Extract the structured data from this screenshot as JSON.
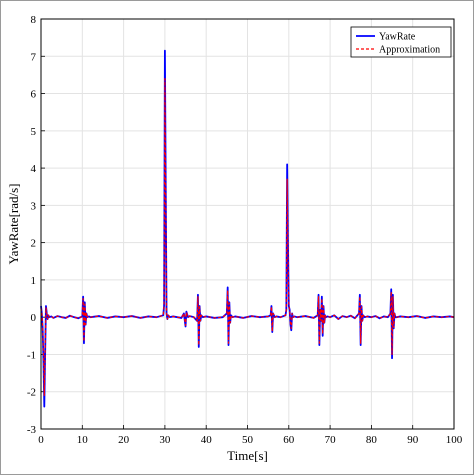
{
  "chart_data": {
    "type": "line",
    "title": "",
    "xlabel": "Time[s]",
    "ylabel": "YawRate[rad/s]",
    "xlim": [
      0,
      100
    ],
    "ylim": [
      -3,
      8
    ],
    "xticks": [
      0,
      10,
      20,
      30,
      40,
      50,
      60,
      70,
      80,
      90,
      100
    ],
    "yticks": [
      -3,
      -2,
      -1,
      0,
      1,
      2,
      3,
      4,
      5,
      6,
      7,
      8
    ],
    "grid": true,
    "legend": "top-right",
    "series": [
      {
        "name": "YawRate",
        "color": "#0000ff",
        "style": "solid",
        "x": [
          0,
          0.2,
          0.4,
          0.6,
          0.8,
          1.0,
          1.2,
          1.4,
          1.6,
          1.8,
          2.0,
          2.5,
          3,
          4,
          5,
          6,
          7,
          8,
          9,
          10,
          10.2,
          10.4,
          10.6,
          10.8,
          11.0,
          11.2,
          11.6,
          12,
          14,
          16,
          18,
          20,
          22,
          24,
          26,
          28,
          29.6,
          29.8,
          30.0,
          30.2,
          30.4,
          30.6,
          30.8,
          31.2,
          32,
          34,
          34.6,
          35.0,
          35.2,
          35.6,
          36,
          37,
          37.8,
          38.0,
          38.2,
          38.4,
          38.6,
          38.8,
          39.2,
          40,
          42,
          44,
          45.0,
          45.2,
          45.4,
          45.6,
          45.8,
          46.0,
          46.4,
          47,
          49,
          51,
          53,
          55,
          55.6,
          55.8,
          56.0,
          56.2,
          56.6,
          57,
          58,
          59.2,
          59.4,
          59.6,
          59.8,
          60.0,
          60.2,
          60.4,
          60.6,
          60.8,
          61.0,
          61.4,
          62,
          64,
          66,
          67.0,
          67.2,
          67.4,
          67.6,
          67.8,
          68.0,
          68.2,
          68.4,
          68.6,
          68.8,
          69.0,
          69.4,
          70,
          71,
          72,
          73,
          74,
          75,
          76,
          77.0,
          77.2,
          77.4,
          77.6,
          77.8,
          78.0,
          78.4,
          79,
          80,
          81,
          82,
          83,
          84,
          84.6,
          84.8,
          85.0,
          85.2,
          85.4,
          85.6,
          85.8,
          86.2,
          87,
          89,
          91,
          93,
          95,
          97,
          99,
          100
        ],
        "y": [
          0.3,
          0.1,
          -0.3,
          -1.2,
          -2.4,
          -1.0,
          0.3,
          0.1,
          -0.05,
          0.05,
          0.0,
          0.02,
          -0.02,
          0.03,
          0.0,
          -0.02,
          0.04,
          0.0,
          -0.03,
          0.02,
          0.55,
          -0.7,
          0.4,
          -0.2,
          0.1,
          0.0,
          0.02,
          0.0,
          0.03,
          -0.02,
          0.02,
          0.0,
          0.03,
          -0.02,
          0.02,
          0.0,
          0.05,
          0.3,
          7.15,
          3.5,
          0.1,
          -0.05,
          0.05,
          0.0,
          0.02,
          -0.02,
          0.1,
          -0.25,
          0.15,
          0.0,
          0.03,
          0.0,
          -0.1,
          0.6,
          -0.8,
          0.3,
          -0.1,
          0.05,
          0.0,
          0.02,
          -0.02,
          0.0,
          0.1,
          0.8,
          -0.75,
          0.4,
          -0.15,
          0.05,
          0.0,
          0.02,
          -0.02,
          0.03,
          0.0,
          0.02,
          0.05,
          0.3,
          -0.4,
          0.1,
          0.0,
          0.02,
          0.0,
          0.05,
          0.2,
          4.1,
          2.0,
          0.3,
          0.2,
          -0.2,
          -0.35,
          0.1,
          0.0,
          0.02,
          0.0,
          0.03,
          -0.02,
          0.05,
          0.6,
          -0.75,
          0.2,
          -0.1,
          0.55,
          -0.5,
          0.3,
          -0.15,
          0.05,
          0.0,
          0.02,
          0.0,
          0.05,
          -0.05,
          0.03,
          0.0,
          0.04,
          -0.03,
          0.1,
          0.6,
          -0.75,
          0.3,
          -0.1,
          0.05,
          0.0,
          0.02,
          0.0,
          0.03,
          -0.03,
          0.02,
          0.0,
          0.1,
          0.75,
          -1.1,
          0.6,
          -0.3,
          0.1,
          0.0,
          0.0,
          0.02,
          0.0,
          0.03,
          -0.02,
          0.02,
          0.0,
          0.02,
          0.0
        ]
      },
      {
        "name": "Approximation",
        "color": "#ff0000",
        "style": "dashed",
        "x": [
          0,
          0.2,
          0.4,
          0.6,
          0.8,
          1.0,
          1.2,
          1.4,
          1.6,
          1.8,
          2.0,
          2.5,
          3,
          4,
          5,
          6,
          7,
          8,
          9,
          10,
          10.2,
          10.4,
          10.6,
          10.8,
          11.0,
          11.2,
          11.6,
          12,
          14,
          16,
          18,
          20,
          22,
          24,
          26,
          28,
          29.6,
          29.8,
          30.0,
          30.2,
          30.4,
          30.6,
          30.8,
          31.2,
          32,
          34,
          34.6,
          35.0,
          35.2,
          35.6,
          36,
          37,
          37.8,
          38.0,
          38.2,
          38.4,
          38.6,
          38.8,
          39.2,
          40,
          42,
          44,
          45.0,
          45.2,
          45.4,
          45.6,
          45.8,
          46.0,
          46.4,
          47,
          49,
          51,
          53,
          55,
          55.6,
          55.8,
          56.0,
          56.2,
          56.6,
          57,
          58,
          59.2,
          59.4,
          59.6,
          59.8,
          60.0,
          60.2,
          60.4,
          60.6,
          60.8,
          61.0,
          61.4,
          62,
          64,
          66,
          67.0,
          67.2,
          67.4,
          67.6,
          67.8,
          68.0,
          68.2,
          68.4,
          68.6,
          68.8,
          69.0,
          69.4,
          70,
          71,
          72,
          73,
          74,
          75,
          76,
          77.0,
          77.2,
          77.4,
          77.6,
          77.8,
          78.0,
          78.4,
          79,
          80,
          81,
          82,
          83,
          84,
          84.6,
          84.8,
          85.0,
          85.2,
          85.4,
          85.6,
          85.8,
          86.2,
          87,
          89,
          91,
          93,
          95,
          97,
          99,
          100
        ],
        "y": [
          0.25,
          0.1,
          -0.25,
          -1.0,
          -2.1,
          -0.9,
          0.25,
          0.1,
          -0.05,
          0.05,
          0.0,
          0.02,
          -0.02,
          0.03,
          0.0,
          -0.02,
          0.04,
          0.0,
          -0.03,
          0.02,
          0.5,
          -0.65,
          0.35,
          -0.2,
          0.1,
          0.0,
          0.02,
          0.0,
          0.03,
          -0.02,
          0.02,
          0.0,
          0.03,
          -0.02,
          0.02,
          0.0,
          0.05,
          0.3,
          6.4,
          3.2,
          0.1,
          -0.05,
          0.05,
          0.0,
          0.02,
          -0.02,
          0.1,
          -0.22,
          0.13,
          0.0,
          0.03,
          0.0,
          -0.1,
          0.55,
          -0.75,
          0.28,
          -0.1,
          0.05,
          0.0,
          0.02,
          -0.02,
          0.0,
          0.1,
          0.72,
          -0.7,
          0.38,
          -0.15,
          0.05,
          0.0,
          0.02,
          -0.02,
          0.03,
          0.0,
          0.02,
          0.05,
          0.28,
          -0.38,
          0.1,
          0.0,
          0.02,
          0.0,
          0.05,
          0.2,
          3.7,
          1.8,
          0.3,
          0.2,
          -0.2,
          -0.3,
          0.1,
          0.0,
          0.02,
          0.0,
          0.03,
          -0.02,
          0.05,
          0.55,
          -0.7,
          0.2,
          -0.1,
          0.5,
          -0.45,
          0.28,
          -0.15,
          0.05,
          0.0,
          0.02,
          0.0,
          0.05,
          -0.05,
          0.03,
          0.0,
          0.04,
          -0.03,
          0.1,
          0.55,
          -0.7,
          0.28,
          -0.1,
          0.05,
          0.0,
          0.02,
          0.0,
          0.03,
          -0.03,
          0.02,
          0.0,
          0.1,
          0.68,
          -1.0,
          0.55,
          -0.28,
          0.1,
          0.0,
          0.0,
          0.02,
          0.0,
          0.03,
          -0.02,
          0.02,
          0.0,
          0.02,
          0.0
        ]
      }
    ]
  }
}
